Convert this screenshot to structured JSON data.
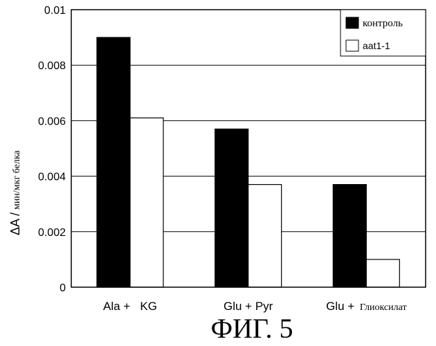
{
  "chart_data": {
    "type": "bar",
    "categories": [
      "Ala + KG",
      "Glu + Pyr",
      "Glu + Глиоксилат"
    ],
    "category_parts": [
      {
        "main": "Ala +   KG",
        "suffix": ""
      },
      {
        "main": "Glu + Pyr",
        "suffix": ""
      },
      {
        "main": "Glu + ",
        "suffix": "Глиоксилат"
      }
    ],
    "series": [
      {
        "name": "контроль",
        "values": [
          0.009,
          0.0057,
          0.0037
        ],
        "color": "#000000"
      },
      {
        "name": "aat1-1",
        "values": [
          0.0061,
          0.0037,
          0.001
        ],
        "color": "#ffffff"
      }
    ],
    "ylim": [
      0,
      0.01
    ],
    "yticks": [
      0,
      0.002,
      0.004,
      0.006,
      0.008,
      0.01
    ],
    "ytick_labels": [
      "0",
      "0.002",
      "0.004",
      "0.006",
      "0.008",
      "0.01"
    ],
    "ylabel_main": "ΔA /",
    "ylabel_unit": "мин/мкг белка",
    "grid": true,
    "legend_position": "top-right"
  },
  "caption": "ФИГ. 5"
}
